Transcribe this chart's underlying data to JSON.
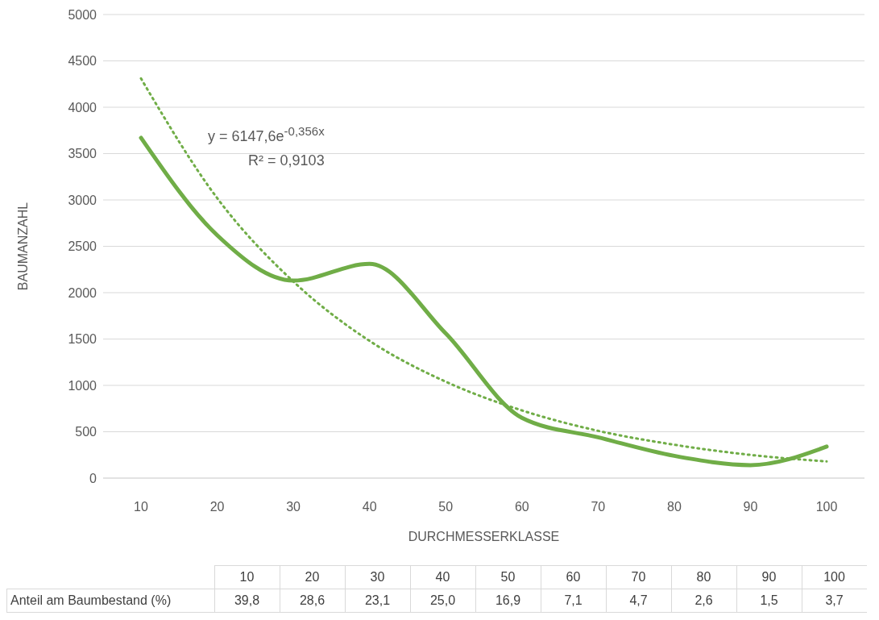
{
  "chart_data": {
    "type": "line",
    "xlabel": "DURCHMESSERKLASSE",
    "ylabel": "BAUMANZAHL",
    "categories": [
      "10",
      "20",
      "30",
      "40",
      "50",
      "60",
      "70",
      "80",
      "90",
      "100"
    ],
    "series": [
      {
        "color": "#70ad47",
        "values": [
          3670,
          2620,
          2130,
          2310,
          1560,
          650,
          440,
          240,
          140,
          340
        ],
        "line_style": "solid"
      },
      {
        "color": "#70ad47",
        "values": [
          4310,
          3020,
          2120,
          1480,
          1040,
          730,
          510,
          360,
          250,
          180
        ],
        "line_style": "dotted"
      }
    ],
    "ylim": [
      0,
      5000
    ],
    "yticks": [
      0,
      500,
      1000,
      1500,
      2000,
      2500,
      3000,
      3500,
      4000,
      4500,
      5000
    ],
    "grid": "y",
    "legend": false,
    "marker": "none",
    "annotations": [
      "y = 6147,6e$^{-0,356x}$",
      "R² = 0,9103",
      "Anteil am Baumbestand (%)",
      "39,8",
      "28,6",
      "23,1",
      "25,0",
      "16,9",
      "7,1",
      "4,7",
      "2,6",
      "1,5",
      "3,7"
    ]
  }
}
